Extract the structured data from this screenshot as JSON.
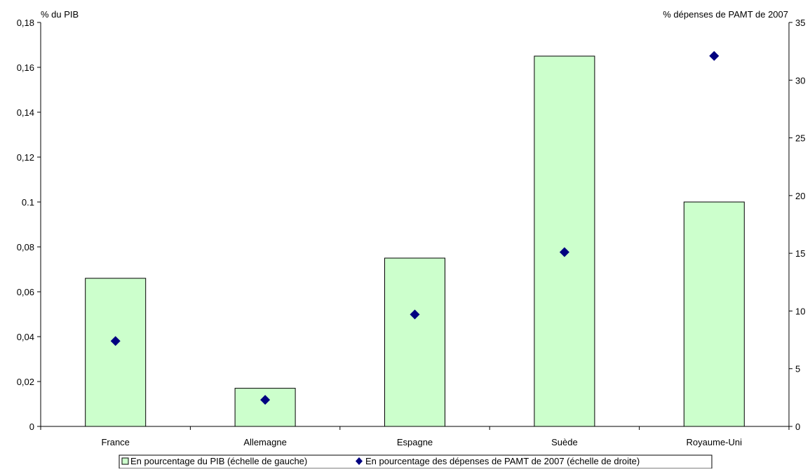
{
  "chart_data": {
    "type": "bar",
    "categories": [
      "France",
      "Allemagne",
      "Espagne",
      "Suède",
      "Royaume-Uni"
    ],
    "series": [
      {
        "name": "En pourcentage du PIB (échelle de gauche)",
        "kind": "bar",
        "axis": "left",
        "values": [
          0.066,
          0.017,
          0.075,
          0.165,
          0.1
        ],
        "color": "#ccffcc"
      },
      {
        "name": "En pourcentage des dépenses de PAMT de 2007 (échelle de droite)",
        "kind": "scatter",
        "axis": "right",
        "values": [
          7.4,
          2.3,
          9.7,
          15.1,
          32.1
        ],
        "color": "#000080"
      }
    ],
    "ylabel_left": "% du PIB",
    "ylabel_right": "% dépenses de PAMT de 2007",
    "ylim_left": [
      0,
      0.18
    ],
    "ylim_right": [
      0,
      35
    ],
    "yticks_left": [
      "0",
      "0,02",
      "0,04",
      "0,06",
      "0,08",
      "0.1",
      "0,12",
      "0,14",
      "0,16",
      "0,18"
    ],
    "yticks_right": [
      "0",
      "5",
      "10",
      "15",
      "20",
      "25",
      "30",
      "35"
    ],
    "grid": false,
    "legend_position": "bottom"
  }
}
